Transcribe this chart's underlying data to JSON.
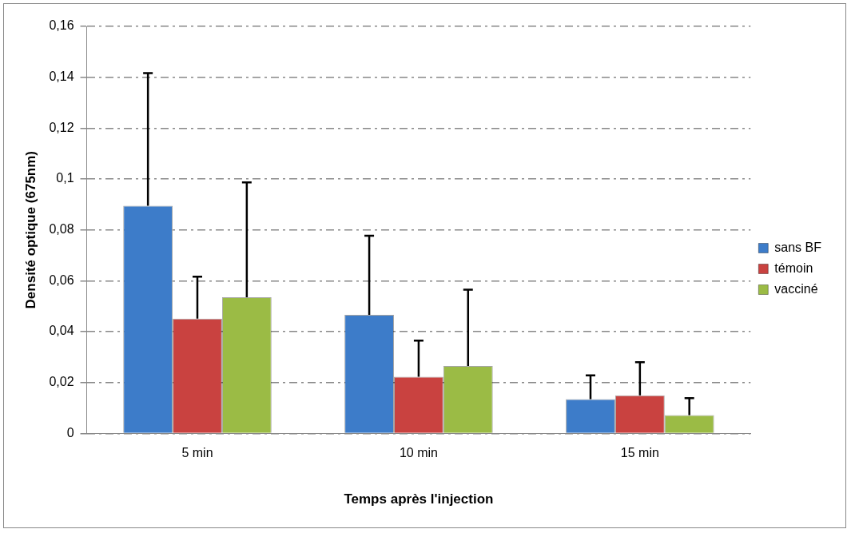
{
  "chart_data": {
    "type": "bar",
    "xlabel": "Temps après l'injection",
    "ylabel": "Densité optique (675nm)",
    "categories": [
      "5 min",
      "10 min",
      "15 min"
    ],
    "series": [
      {
        "name": "sans BF",
        "color": "#3d7cc9",
        "values": [
          0.0895,
          0.0466,
          0.0135
        ],
        "errors": [
          [
            0.0895,
            0.1416
          ],
          [
            0.0466,
            0.0777
          ],
          [
            0.0135,
            0.0228
          ]
        ]
      },
      {
        "name": "témoin",
        "color": "#c94240",
        "values": [
          0.0451,
          0.0223,
          0.015
        ],
        "errors": [
          [
            0.0451,
            0.0616
          ],
          [
            0.0223,
            0.0365
          ],
          [
            0.015,
            0.028
          ]
        ]
      },
      {
        "name": "vacciné",
        "color": "#9bbb45",
        "values": [
          0.0535,
          0.0265,
          0.0072
        ],
        "errors": [
          [
            0.0535,
            0.0987
          ],
          [
            0.0265,
            0.0565
          ],
          [
            0.0072,
            0.0139
          ]
        ]
      }
    ],
    "ylim": [
      0,
      0.16
    ],
    "yticks": [
      {
        "value": 0,
        "label": "0"
      },
      {
        "value": 0.02,
        "label": "0,02"
      },
      {
        "value": 0.04,
        "label": "0,04"
      },
      {
        "value": 0.06,
        "label": "0,06"
      },
      {
        "value": 0.08,
        "label": "0,08"
      },
      {
        "value": 0.1,
        "label": "0,1"
      },
      {
        "value": 0.12,
        "label": "0,12"
      },
      {
        "value": 0.14,
        "label": "0,14"
      },
      {
        "value": 0.16,
        "label": "0,16"
      }
    ],
    "grid": "y",
    "legend": "right"
  }
}
